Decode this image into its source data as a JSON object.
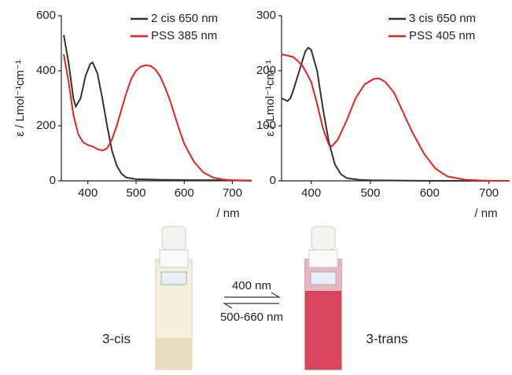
{
  "chart_data": [
    {
      "type": "line",
      "xlabel": "/ nm",
      "ylabel": "ε / Lmol⁻¹cm⁻¹",
      "xlim": [
        345,
        740
      ],
      "xticks": [
        400,
        500,
        600,
        700
      ],
      "ylim": [
        0,
        600
      ],
      "yticks": [
        0,
        200,
        400,
        600
      ],
      "series": [
        {
          "name": "2 cis 650 nm",
          "color": "#333333",
          "x": [
            350,
            360,
            370,
            375,
            385,
            395,
            405,
            410,
            420,
            430,
            440,
            450,
            460,
            470,
            480,
            500,
            550,
            600,
            700,
            740
          ],
          "values": [
            530,
            430,
            300,
            270,
            300,
            380,
            425,
            430,
            390,
            300,
            200,
            110,
            55,
            25,
            12,
            6,
            4,
            3,
            2,
            1
          ]
        },
        {
          "name": "PSS 385 nm",
          "color": "#e8221c",
          "x": [
            350,
            360,
            370,
            380,
            390,
            400,
            410,
            420,
            430,
            440,
            450,
            460,
            470,
            480,
            490,
            500,
            510,
            520,
            530,
            540,
            550,
            560,
            570,
            580,
            590,
            600,
            620,
            640,
            660,
            680,
            700,
            740
          ],
          "values": [
            460,
            360,
            240,
            170,
            140,
            130,
            125,
            115,
            110,
            118,
            150,
            200,
            260,
            320,
            370,
            400,
            415,
            420,
            418,
            405,
            380,
            340,
            295,
            240,
            185,
            135,
            70,
            30,
            12,
            5,
            2,
            0
          ]
        }
      ]
    },
    {
      "type": "line",
      "xlabel": "/ nm",
      "ylabel": "ε / Lmol⁻¹cm⁻¹",
      "xlim": [
        350,
        735
      ],
      "xticks": [
        400,
        500,
        600,
        700
      ],
      "ylim": [
        0,
        300
      ],
      "yticks": [
        0,
        100,
        200,
        300
      ],
      "series": [
        {
          "name": "3 cis 650 nm",
          "color": "#333333",
          "x": [
            350,
            360,
            365,
            370,
            380,
            390,
            395,
            400,
            410,
            420,
            430,
            440,
            450,
            460,
            480,
            500,
            600,
            735
          ],
          "values": [
            150,
            145,
            150,
            165,
            200,
            235,
            242,
            238,
            200,
            130,
            70,
            30,
            12,
            5,
            2,
            1,
            0,
            0
          ]
        },
        {
          "name": "PSS 405 nm",
          "color": "#e8221c",
          "x": [
            350,
            370,
            385,
            400,
            410,
            420,
            430,
            435,
            445,
            460,
            475,
            490,
            505,
            515,
            525,
            540,
            555,
            570,
            590,
            610,
            630,
            660,
            700,
            735
          ],
          "values": [
            230,
            225,
            210,
            180,
            140,
            95,
            65,
            63,
            75,
            110,
            150,
            175,
            185,
            186,
            180,
            160,
            125,
            90,
            50,
            22,
            8,
            2,
            0,
            0
          ]
        }
      ]
    }
  ],
  "scheme": {
    "left_label": "3-cis",
    "right_label": "3-trans",
    "forward": "400 nm",
    "backward": "500-660 nm"
  }
}
